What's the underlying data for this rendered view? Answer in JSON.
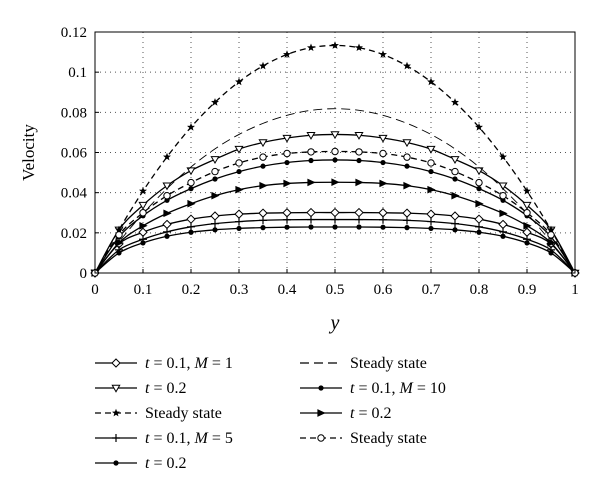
{
  "chart_data": {
    "type": "line",
    "xlabel": "y",
    "ylabel": "Velocity",
    "xlim": [
      0,
      1
    ],
    "ylim": [
      0,
      0.12
    ],
    "xticks": [
      "0",
      "0.1",
      "0.2",
      "0.3",
      "0.4",
      "0.5",
      "0.6",
      "0.7",
      "0.8",
      "0.9",
      "1"
    ],
    "yticks": [
      "0",
      "0.02",
      "0.04",
      "0.06",
      "0.08",
      "0.1",
      "0.12"
    ],
    "grid": true,
    "legend_placement": "bottom",
    "x": [
      0,
      0.05,
      0.1,
      0.15,
      0.2,
      0.25,
      0.3,
      0.35,
      0.4,
      0.45,
      0.5,
      0.55,
      0.6,
      0.65,
      0.7,
      0.75,
      0.8,
      0.85,
      0.9,
      0.95,
      1
    ],
    "series": [
      {
        "name": "t = 0.1, M = 1",
        "marker": "diamond-open",
        "dash": "solid",
        "values": [
          0,
          0.0145,
          0.0203,
          0.0242,
          0.0268,
          0.0284,
          0.0293,
          0.0298,
          0.03,
          0.0301,
          0.0301,
          0.0301,
          0.03,
          0.0298,
          0.0293,
          0.0284,
          0.0268,
          0.0242,
          0.0203,
          0.0145,
          0
        ]
      },
      {
        "name": "t = 0.2",
        "marker": "triangle-down-open",
        "dash": "solid",
        "values": [
          0,
          0.0215,
          0.0338,
          0.0435,
          0.051,
          0.0566,
          0.0617,
          0.065,
          0.0672,
          0.0686,
          0.069,
          0.0686,
          0.0672,
          0.065,
          0.0617,
          0.0566,
          0.051,
          0.0435,
          0.0338,
          0.0215,
          0
        ]
      },
      {
        "name": "Steady state",
        "marker": "star",
        "dash": "dashed",
        "values": [
          0,
          0.0215,
          0.0408,
          0.0578,
          0.0726,
          0.085,
          0.0952,
          0.1031,
          0.1088,
          0.1122,
          0.1133,
          0.1122,
          0.1088,
          0.1031,
          0.0952,
          0.085,
          0.0726,
          0.0578,
          0.0408,
          0.0215,
          0
        ]
      },
      {
        "name": "t = 0.1, M = 5",
        "marker": "plus",
        "dash": "solid",
        "values": [
          0,
          0.0115,
          0.0168,
          0.0205,
          0.023,
          0.0246,
          0.0256,
          0.0262,
          0.0265,
          0.0266,
          0.0266,
          0.0266,
          0.0265,
          0.0262,
          0.0256,
          0.0246,
          0.023,
          0.0205,
          0.0168,
          0.0115,
          0
        ]
      },
      {
        "name": "t = 0.2",
        "marker": "dot",
        "dash": "solid",
        "values": [
          0,
          0.018,
          0.0285,
          0.0362,
          0.042,
          0.0468,
          0.0505,
          0.0532,
          0.055,
          0.056,
          0.0563,
          0.056,
          0.055,
          0.0532,
          0.0505,
          0.0468,
          0.042,
          0.0362,
          0.0285,
          0.018,
          0
        ]
      },
      {
        "name": "Steady state",
        "marker": "none",
        "dash": "longdash",
        "values": [
          0,
          0.0155,
          0.0296,
          0.042,
          0.0528,
          0.0618,
          0.069,
          0.0745,
          0.0785,
          0.081,
          0.0818,
          0.081,
          0.0785,
          0.0745,
          0.069,
          0.0618,
          0.0528,
          0.042,
          0.0296,
          0.0155,
          0
        ]
      },
      {
        "name": "t = 0.1, M = 10",
        "marker": "dot",
        "dash": "solid",
        "values": [
          0,
          0.01,
          0.015,
          0.0183,
          0.0203,
          0.0215,
          0.0222,
          0.0226,
          0.0228,
          0.0229,
          0.0229,
          0.0229,
          0.0228,
          0.0226,
          0.0222,
          0.0215,
          0.0203,
          0.0183,
          0.015,
          0.01,
          0
        ]
      },
      {
        "name": "t = 0.2",
        "marker": "triangle-right",
        "dash": "solid",
        "values": [
          0,
          0.015,
          0.0235,
          0.0297,
          0.0345,
          0.0385,
          0.0415,
          0.0435,
          0.0446,
          0.0451,
          0.0452,
          0.0451,
          0.0446,
          0.0435,
          0.0415,
          0.0385,
          0.0345,
          0.0297,
          0.0235,
          0.015,
          0
        ]
      },
      {
        "name": "Steady state",
        "marker": "circle-open",
        "dash": "dashed",
        "values": [
          0,
          0.019,
          0.03,
          0.0385,
          0.045,
          0.0505,
          0.0548,
          0.0577,
          0.0595,
          0.0603,
          0.0605,
          0.0603,
          0.0595,
          0.0577,
          0.0548,
          0.0505,
          0.045,
          0.0385,
          0.03,
          0.019,
          0
        ]
      }
    ]
  },
  "legend": {
    "items": [
      {
        "t": "t",
        "rest": " = 0.1, ",
        "m": "M",
        "mval": " = 1",
        "marker": "diamond-open",
        "dash": "solid"
      },
      {
        "t": "",
        "rest": "Steady state",
        "m": "",
        "mval": "",
        "marker": "none",
        "dash": "longdash"
      },
      {
        "t": "t",
        "rest": " = 0.2",
        "m": "",
        "mval": "",
        "marker": "triangle-down-open",
        "dash": "solid"
      },
      {
        "t": "t",
        "rest": " = 0.1, ",
        "m": "M",
        "mval": " = 10",
        "marker": "dot",
        "dash": "solid"
      },
      {
        "t": "",
        "rest": "Steady state",
        "m": "",
        "mval": "",
        "marker": "star",
        "dash": "dashed"
      },
      {
        "t": "t",
        "rest": " = 0.2",
        "m": "",
        "mval": "",
        "marker": "triangle-right",
        "dash": "solid"
      },
      {
        "t": "t",
        "rest": " = 0.1, ",
        "m": "M",
        "mval": " = 5",
        "marker": "plus",
        "dash": "solid"
      },
      {
        "t": "",
        "rest": "Steady state",
        "m": "",
        "mval": "",
        "marker": "circle-open",
        "dash": "dashed"
      },
      {
        "t": "t",
        "rest": " = 0.2",
        "m": "",
        "mval": "",
        "marker": "dot",
        "dash": "solid"
      }
    ]
  }
}
